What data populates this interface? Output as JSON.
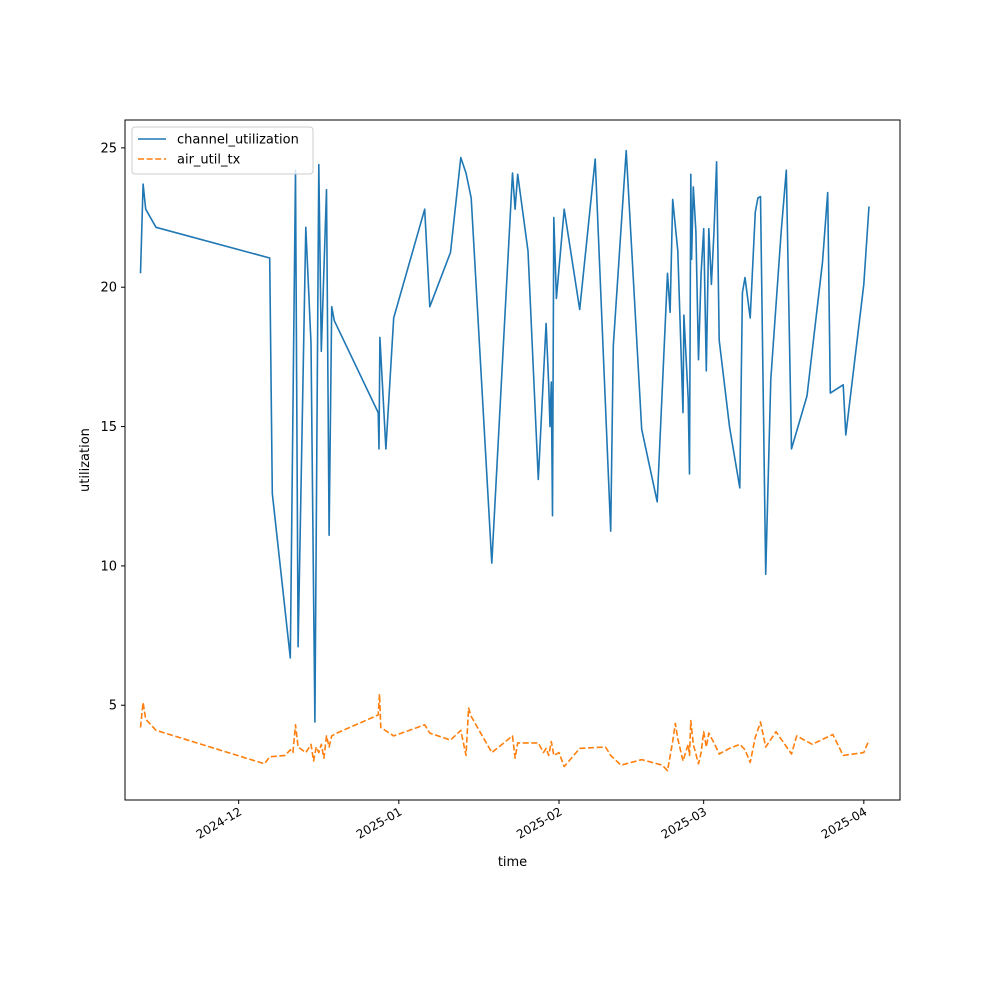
{
  "chart_data": {
    "type": "line",
    "xlabel": "time",
    "ylabel": "utilization",
    "x_type": "date",
    "x_range": [
      "2024-11-09",
      "2025-04-08"
    ],
    "ylim": [
      1.6,
      26.0
    ],
    "grid": false,
    "legend_position": "upper-left",
    "x_ticks": [
      "2024-12-01",
      "2025-01-01",
      "2025-02-01",
      "2025-03-01",
      "2025-04-01"
    ],
    "x_tick_labels": [
      "2024-12",
      "2025-01",
      "2025-02",
      "2025-03",
      "2025-04"
    ],
    "y_ticks": [
      5,
      10,
      15,
      20,
      25
    ],
    "y_tick_labels": [
      "5",
      "10",
      "15",
      "20",
      "25"
    ],
    "series": [
      {
        "name": "channel_utilization",
        "color": "#1f77b4",
        "style": "solid",
        "points": [
          [
            "2024-11-12T00:00",
            20.5
          ],
          [
            "2024-11-12T12:00",
            23.7
          ],
          [
            "2024-11-13T00:00",
            22.8
          ],
          [
            "2024-11-15T00:00",
            22.15
          ],
          [
            "2024-12-07T00:00",
            21.05
          ],
          [
            "2024-12-07T12:00",
            12.6
          ],
          [
            "2024-12-11T00:00",
            6.7
          ],
          [
            "2024-12-12T00:00",
            24.2
          ],
          [
            "2024-12-12T12:00",
            7.1
          ],
          [
            "2024-12-14T00:00",
            22.15
          ],
          [
            "2024-12-15T00:00",
            18.0
          ],
          [
            "2024-12-15T18:00",
            4.4
          ],
          [
            "2024-12-16T00:00",
            11.0
          ],
          [
            "2024-12-16T12:00",
            24.4
          ],
          [
            "2024-12-17T00:00",
            17.7
          ],
          [
            "2024-12-18T00:00",
            23.5
          ],
          [
            "2024-12-18T12:00",
            11.1
          ],
          [
            "2024-12-19T00:00",
            19.3
          ],
          [
            "2024-12-19T12:00",
            18.8
          ],
          [
            "2024-12-28T00:00",
            15.5
          ],
          [
            "2024-12-28T04:00",
            14.2
          ],
          [
            "2024-12-28T08:00",
            18.2
          ],
          [
            "2024-12-29T12:00",
            14.2
          ],
          [
            "2024-12-31T00:00",
            18.9
          ],
          [
            "2025-01-06T00:00",
            22.8
          ],
          [
            "2025-01-07T00:00",
            19.3
          ],
          [
            "2025-01-11T00:00",
            21.25
          ],
          [
            "2025-01-13T00:00",
            24.65
          ],
          [
            "2025-01-14T00:00",
            24.1
          ],
          [
            "2025-01-15T00:00",
            23.2
          ],
          [
            "2025-01-19T00:00",
            10.1
          ],
          [
            "2025-01-23T00:00",
            24.1
          ],
          [
            "2025-01-23T12:00",
            22.8
          ],
          [
            "2025-01-24T00:00",
            24.05
          ],
          [
            "2025-01-26T00:00",
            21.3
          ],
          [
            "2025-01-28T00:00",
            13.1
          ],
          [
            "2025-01-29T12:00",
            18.7
          ],
          [
            "2025-01-30T00:00",
            16.5
          ],
          [
            "2025-01-30T06:00",
            15.0
          ],
          [
            "2025-01-30T12:00",
            16.6
          ],
          [
            "2025-01-30T18:00",
            11.8
          ],
          [
            "2025-01-31T00:00",
            22.5
          ],
          [
            "2025-01-31T12:00",
            19.6
          ],
          [
            "2025-02-02T00:00",
            22.8
          ],
          [
            "2025-02-05T00:00",
            19.2
          ],
          [
            "2025-02-08T00:00",
            24.6
          ],
          [
            "2025-02-11T00:00",
            11.25
          ],
          [
            "2025-02-11T12:00",
            17.9
          ],
          [
            "2025-02-14T00:00",
            24.9
          ],
          [
            "2025-02-17T00:00",
            14.9
          ],
          [
            "2025-02-20T00:00",
            12.3
          ],
          [
            "2025-02-22T00:00",
            20.5
          ],
          [
            "2025-02-22T12:00",
            19.1
          ],
          [
            "2025-02-23T00:00",
            23.15
          ],
          [
            "2025-02-24T00:00",
            21.3
          ],
          [
            "2025-02-25T00:00",
            15.5
          ],
          [
            "2025-02-25T04:00",
            19.0
          ],
          [
            "2025-02-26T00:00",
            16.0
          ],
          [
            "2025-02-26T06:00",
            13.3
          ],
          [
            "2025-02-26T12:00",
            24.05
          ],
          [
            "2025-02-26T16:00",
            21.0
          ],
          [
            "2025-02-27T00:00",
            23.6
          ],
          [
            "2025-02-27T12:00",
            22.0
          ],
          [
            "2025-02-28T00:00",
            17.4
          ],
          [
            "2025-02-28T12:00",
            20.5
          ],
          [
            "2025-03-01T00:00",
            22.1
          ],
          [
            "2025-03-01T12:00",
            17.0
          ],
          [
            "2025-03-02T00:00",
            22.1
          ],
          [
            "2025-03-02T12:00",
            20.1
          ],
          [
            "2025-03-03T00:00",
            22.0
          ],
          [
            "2025-03-03T12:00",
            24.5
          ],
          [
            "2025-03-04T00:00",
            18.1
          ],
          [
            "2025-03-06T00:00",
            15.0
          ],
          [
            "2025-03-08T00:00",
            12.8
          ],
          [
            "2025-03-08T12:00",
            19.8
          ],
          [
            "2025-03-09T00:00",
            20.35
          ],
          [
            "2025-03-10T00:00",
            18.9
          ],
          [
            "2025-03-11T00:00",
            22.7
          ],
          [
            "2025-03-11T12:00",
            23.2
          ],
          [
            "2025-03-12T00:00",
            23.25
          ],
          [
            "2025-03-13T00:00",
            9.7
          ],
          [
            "2025-03-14T00:00",
            16.7
          ],
          [
            "2025-03-16T00:00",
            22.0
          ],
          [
            "2025-03-17T00:00",
            24.2
          ],
          [
            "2025-03-18T00:00",
            14.2
          ],
          [
            "2025-03-21T00:00",
            16.1
          ],
          [
            "2025-03-24T00:00",
            20.9
          ],
          [
            "2025-03-25T00:00",
            23.4
          ],
          [
            "2025-03-25T12:00",
            16.2
          ],
          [
            "2025-03-28T00:00",
            16.5
          ],
          [
            "2025-03-28T12:00",
            14.7
          ],
          [
            "2025-04-01T00:00",
            20.1
          ],
          [
            "2025-04-02T00:00",
            22.9
          ]
        ]
      },
      {
        "name": "air_util_tx",
        "color": "#ff7f0e",
        "style": "dashed",
        "points": [
          [
            "2024-11-12T00:00",
            4.2
          ],
          [
            "2024-11-12T12:00",
            5.1
          ],
          [
            "2024-11-13T00:00",
            4.5
          ],
          [
            "2024-11-15T00:00",
            4.1
          ],
          [
            "2024-12-06T00:00",
            2.9
          ],
          [
            "2024-12-07T00:00",
            3.15
          ],
          [
            "2024-12-10T00:00",
            3.2
          ],
          [
            "2024-12-11T00:00",
            3.4
          ],
          [
            "2024-12-11T12:00",
            3.3
          ],
          [
            "2024-12-12T00:00",
            4.3
          ],
          [
            "2024-12-12T12:00",
            3.5
          ],
          [
            "2024-12-14T00:00",
            3.3
          ],
          [
            "2024-12-15T00:00",
            3.6
          ],
          [
            "2024-12-15T12:00",
            3.0
          ],
          [
            "2024-12-16T00:00",
            3.5
          ],
          [
            "2024-12-16T12:00",
            3.3
          ],
          [
            "2024-12-17T00:00",
            3.6
          ],
          [
            "2024-12-17T12:00",
            3.1
          ],
          [
            "2024-12-18T00:00",
            3.9
          ],
          [
            "2024-12-18T12:00",
            3.5
          ],
          [
            "2024-12-19T00:00",
            3.9
          ],
          [
            "2024-12-20T00:00",
            4.0
          ],
          [
            "2024-12-28T00:00",
            4.65
          ],
          [
            "2024-12-28T06:00",
            5.4
          ],
          [
            "2024-12-28T12:00",
            4.2
          ],
          [
            "2024-12-31T00:00",
            3.9
          ],
          [
            "2025-01-06T00:00",
            4.3
          ],
          [
            "2025-01-07T00:00",
            4.0
          ],
          [
            "2025-01-11T00:00",
            3.75
          ],
          [
            "2025-01-13T00:00",
            4.1
          ],
          [
            "2025-01-14T00:00",
            3.2
          ],
          [
            "2025-01-14T12:00",
            4.9
          ],
          [
            "2025-01-15T00:00",
            4.6
          ],
          [
            "2025-01-19T00:00",
            3.3
          ],
          [
            "2025-01-23T00:00",
            3.9
          ],
          [
            "2025-01-23T12:00",
            3.1
          ],
          [
            "2025-01-24T00:00",
            3.65
          ],
          [
            "2025-01-28T00:00",
            3.65
          ],
          [
            "2025-01-29T00:00",
            3.3
          ],
          [
            "2025-01-29T12:00",
            3.45
          ],
          [
            "2025-01-30T00:00",
            3.2
          ],
          [
            "2025-01-30T12:00",
            3.7
          ],
          [
            "2025-01-31T00:00",
            3.2
          ],
          [
            "2025-02-01T00:00",
            3.3
          ],
          [
            "2025-02-02T00:00",
            2.8
          ],
          [
            "2025-02-05T00:00",
            3.45
          ],
          [
            "2025-02-10T00:00",
            3.5
          ],
          [
            "2025-02-11T00:00",
            3.2
          ],
          [
            "2025-02-13T00:00",
            2.85
          ],
          [
            "2025-02-17T00:00",
            3.05
          ],
          [
            "2025-02-21T00:00",
            2.85
          ],
          [
            "2025-02-22T00:00",
            2.65
          ],
          [
            "2025-02-23T00:00",
            3.7
          ],
          [
            "2025-02-23T12:00",
            4.35
          ],
          [
            "2025-02-24T00:00",
            3.8
          ],
          [
            "2025-02-25T00:00",
            3.0
          ],
          [
            "2025-02-26T00:00",
            3.6
          ],
          [
            "2025-02-26T06:00",
            3.2
          ],
          [
            "2025-02-26T12:00",
            4.45
          ],
          [
            "2025-02-27T00:00",
            3.6
          ],
          [
            "2025-02-28T00:00",
            2.9
          ],
          [
            "2025-02-28T12:00",
            3.3
          ],
          [
            "2025-03-01T00:00",
            4.05
          ],
          [
            "2025-03-01T12:00",
            3.5
          ],
          [
            "2025-03-02T00:00",
            4.0
          ],
          [
            "2025-03-03T00:00",
            3.65
          ],
          [
            "2025-03-04T00:00",
            3.25
          ],
          [
            "2025-03-06T00:00",
            3.45
          ],
          [
            "2025-03-08T00:00",
            3.6
          ],
          [
            "2025-03-09T00:00",
            3.4
          ],
          [
            "2025-03-10T00:00",
            2.95
          ],
          [
            "2025-03-11T00:00",
            3.85
          ],
          [
            "2025-03-12T00:00",
            4.4
          ],
          [
            "2025-03-13T00:00",
            3.5
          ],
          [
            "2025-03-15T00:00",
            4.05
          ],
          [
            "2025-03-18T00:00",
            3.25
          ],
          [
            "2025-03-19T00:00",
            3.9
          ],
          [
            "2025-03-22T00:00",
            3.6
          ],
          [
            "2025-03-26T00:00",
            3.95
          ],
          [
            "2025-03-28T00:00",
            3.2
          ],
          [
            "2025-04-01T00:00",
            3.3
          ],
          [
            "2025-04-02T00:00",
            3.75
          ]
        ]
      }
    ]
  }
}
